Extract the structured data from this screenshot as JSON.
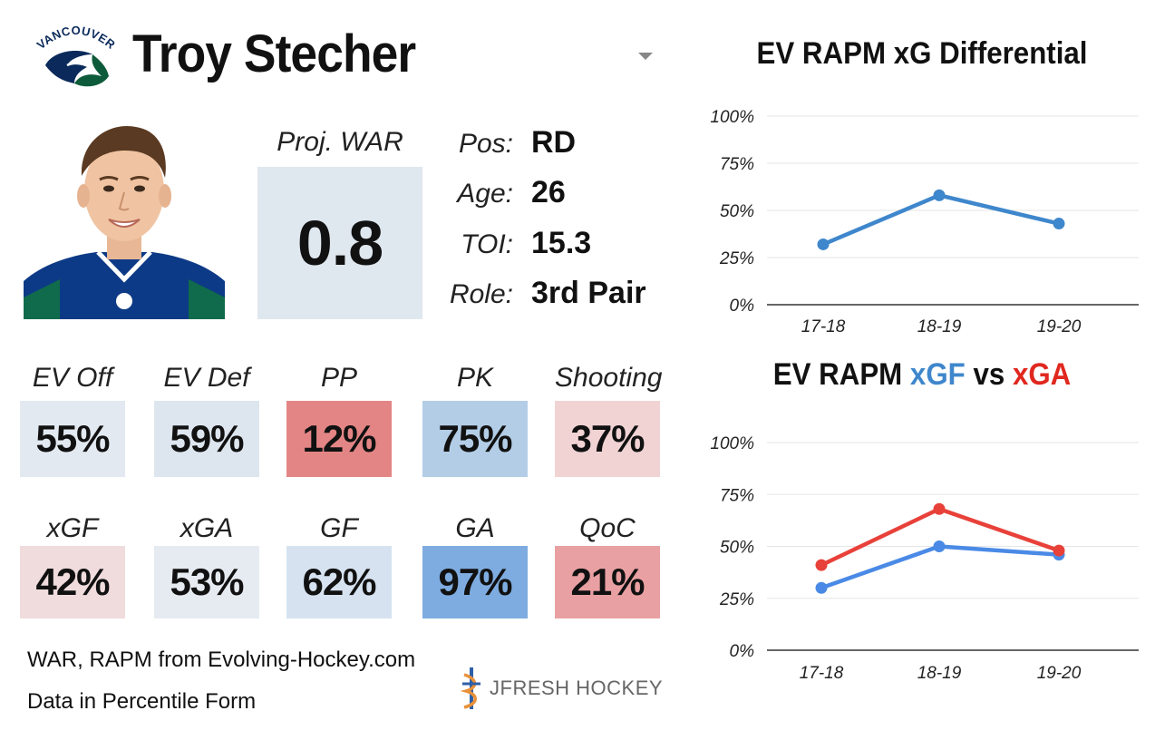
{
  "header": {
    "player_name": "Troy Stecher",
    "team_logo_text": "VANCOUVER"
  },
  "projection": {
    "label": "Proj. WAR",
    "value": "0.8"
  },
  "info": [
    {
      "key": "Pos:",
      "value": "RD"
    },
    {
      "key": "Age:",
      "value": "26"
    },
    {
      "key": "TOI:",
      "value": "15.3"
    },
    {
      "key": "Role:",
      "value": "3rd Pair"
    }
  ],
  "tiles_row1": [
    {
      "label": "EV Off",
      "value": "55%",
      "color": "#e3e9f0"
    },
    {
      "label": "EV Def",
      "value": "59%",
      "color": "#dde6ef"
    },
    {
      "label": "PP",
      "value": "12%",
      "color": "#e48585"
    },
    {
      "label": "PK",
      "value": "75%",
      "color": "#b3cde6"
    },
    {
      "label": "Shooting",
      "value": "37%",
      "color": "#f1d3d4"
    }
  ],
  "tiles_row2": [
    {
      "label": "xGF",
      "value": "42%",
      "color": "#f0dcdd"
    },
    {
      "label": "xGA",
      "value": "53%",
      "color": "#e6ebf1"
    },
    {
      "label": "GF",
      "value": "62%",
      "color": "#d6e2ef"
    },
    {
      "label": "GA",
      "value": "97%",
      "color": "#7eace0"
    },
    {
      "label": "QoC",
      "value": "21%",
      "color": "#e9a0a2"
    }
  ],
  "footer": {
    "source": "WAR, RAPM from  Evolving-Hockey.com",
    "note": "Data in Percentile Form",
    "brand": "JFRESH HOCKEY"
  },
  "chart_titles": {
    "differential": "EV RAPM xG Differential",
    "xgf_vs_xga_prefix": "EV RAPM ",
    "xgf_word": "xGF",
    "vs_word": " vs ",
    "xga_word": "xGA"
  },
  "chart_data": [
    {
      "type": "line",
      "title": "EV RAPM xG Differential",
      "categories": [
        "17-18",
        "18-19",
        "19-20"
      ],
      "y_ticks": [
        "0%",
        "25%",
        "50%",
        "75%",
        "100%"
      ],
      "ylim": [
        0,
        100
      ],
      "grid": true,
      "series": [
        {
          "values": [
            32,
            58,
            43
          ],
          "color": "#3f87cc"
        }
      ]
    },
    {
      "type": "line",
      "title": "EV RAPM xGF vs xGA",
      "categories": [
        "17-18",
        "18-19",
        "19-20"
      ],
      "y_ticks": [
        "0%",
        "25%",
        "50%",
        "75%",
        "100%"
      ],
      "ylim": [
        0,
        100
      ],
      "grid": true,
      "series": [
        {
          "name": "xGF",
          "values": [
            30,
            50,
            46
          ],
          "color": "#4a8ae6"
        },
        {
          "name": "xGA",
          "values": [
            41,
            68,
            48
          ],
          "color": "#e8413a"
        }
      ]
    }
  ]
}
